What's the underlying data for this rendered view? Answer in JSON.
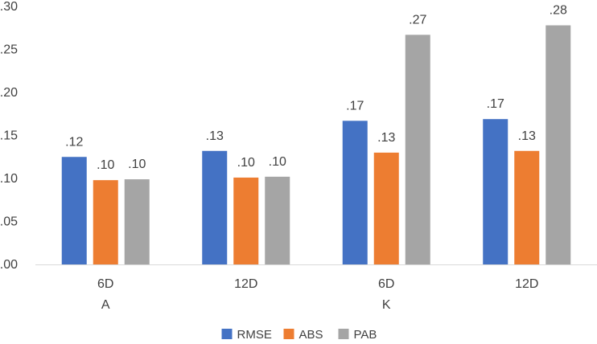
{
  "chart_data": {
    "type": "bar",
    "categories": [
      "6D",
      "12D",
      "6D",
      "12D"
    ],
    "groups": [
      {
        "label": "A",
        "categories": [
          "6D",
          "12D"
        ]
      },
      {
        "label": "K",
        "categories": [
          "6D",
          "12D"
        ]
      }
    ],
    "series": [
      {
        "name": "RMSE",
        "color": "#4472C4",
        "values": [
          0.125,
          0.132,
          0.167,
          0.169
        ],
        "labels": [
          ".12",
          ".13",
          ".17",
          ".17"
        ]
      },
      {
        "name": "ABS",
        "color": "#ED7D31",
        "values": [
          0.098,
          0.101,
          0.13,
          0.132
        ],
        "labels": [
          ".10",
          ".10",
          ".13",
          ".13"
        ]
      },
      {
        "name": "PAB",
        "color": "#A5A5A5",
        "values": [
          0.099,
          0.102,
          0.267,
          0.278
        ],
        "labels": [
          ".10",
          ".10",
          ".27",
          ".28"
        ]
      }
    ],
    "y_ticks": [
      ".00",
      ".05",
      ".10",
      ".15",
      ".20",
      ".25",
      ".30"
    ],
    "ylim": [
      0,
      0.3
    ],
    "title": "",
    "xlabel": "",
    "ylabel": "",
    "grid": false,
    "legend_position": "bottom"
  }
}
